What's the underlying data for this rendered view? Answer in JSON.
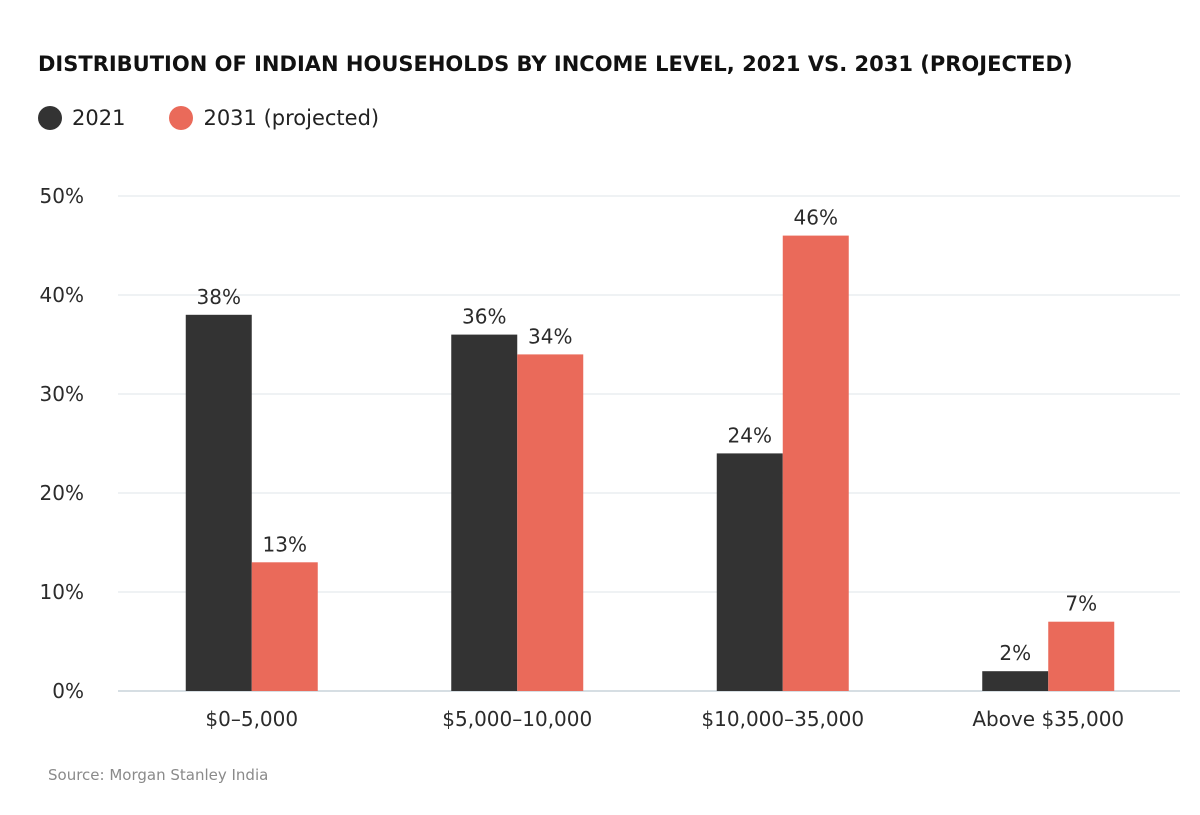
{
  "title": "DISTRIBUTION OF INDIAN HOUSEHOLDS BY INCOME LEVEL, 2021 VS. 2031 (PROJECTED)",
  "source": "Source: Morgan Stanley India",
  "legend": [
    {
      "label": "2021",
      "color": "#333333"
    },
    {
      "label": "2031 (projected)",
      "color": "#ea6a5a"
    }
  ],
  "chart_data": {
    "type": "bar",
    "title": "DISTRIBUTION OF INDIAN HOUSEHOLDS BY INCOME LEVEL, 2021 VS. 2031 (PROJECTED)",
    "categories": [
      "$0–5,000",
      "$5,000–10,000",
      "$10,000–35,000",
      "Above $35,000"
    ],
    "series": [
      {
        "name": "2021",
        "values": [
          38,
          36,
          24,
          2
        ],
        "color": "#333333"
      },
      {
        "name": "2031 (projected)",
        "values": [
          13,
          34,
          46,
          7
        ],
        "color": "#ea6a5a"
      }
    ],
    "value_labels": [
      [
        "38%",
        "36%",
        "24%",
        "2%"
      ],
      [
        "13%",
        "34%",
        "46%",
        "7%"
      ]
    ],
    "ylim": [
      0,
      50
    ],
    "yticks": [
      0,
      10,
      20,
      30,
      40,
      50
    ],
    "ytick_labels": [
      "0%",
      "10%",
      "20%",
      "30%",
      "40%",
      "50%"
    ],
    "xlabel": "",
    "ylabel": "",
    "grid": true,
    "legend_position": "top-left",
    "grid_color": "#dfe4e8"
  }
}
